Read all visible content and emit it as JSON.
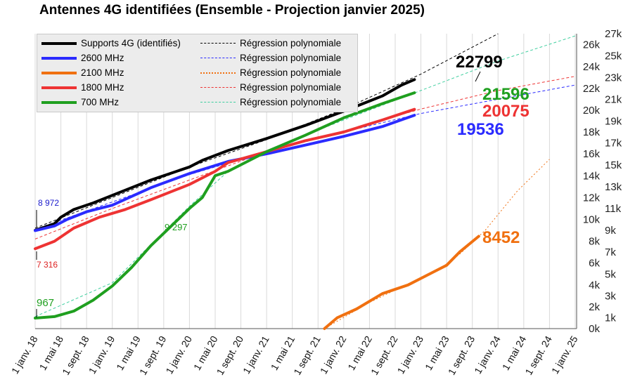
{
  "chart_data": {
    "type": "line",
    "title": "Antennes 4G identifiées (Ensemble - Projection janvier 2025)",
    "x_tick_labels": [
      "1 janv. 18",
      "1 mai 18",
      "1 sept. 18",
      "1 janv. 19",
      "1 mai 19",
      "1 sept. 19",
      "1 janv. 20",
      "1 mai 20",
      "1 sept. 20",
      "1 janv. 21",
      "1 mai 21",
      "1 sept. 21",
      "1 janv. 22",
      "1 mai 22",
      "1 sept. 22",
      "1 janv. 23",
      "1 mai 23",
      "1 sept. 23",
      "1 janv. 24",
      "1 mai 24",
      "1 sept. 24",
      "1 janv. 25"
    ],
    "y_left_ticks": [
      "0k",
      "2k",
      "4k",
      "6k",
      "8k",
      "10k",
      "12k",
      "14k",
      "16k",
      "18k",
      "20k",
      "22k",
      "24k",
      "26k"
    ],
    "y_right_ticks": [
      "1k",
      "3k",
      "5k",
      "7k",
      "9k",
      "11k",
      "13k",
      "15k",
      "17k",
      "19k",
      "21k",
      "23k",
      "25k",
      "27k"
    ],
    "ylim": [
      0,
      27000
    ],
    "grid": "vertical",
    "legend_position": "top-left",
    "series": [
      {
        "key": "supports",
        "name": "Supports 4G (identifiés)",
        "color": "#000000",
        "values": [
          [
            0,
            9000
          ],
          [
            3,
            9600
          ],
          [
            4,
            10200
          ],
          [
            6,
            10900
          ],
          [
            9,
            11500
          ],
          [
            12,
            12200
          ],
          [
            18,
            13600
          ],
          [
            24,
            14800
          ],
          [
            26,
            15400
          ],
          [
            30,
            16300
          ],
          [
            36,
            17400
          ],
          [
            42,
            18600
          ],
          [
            48,
            19900
          ],
          [
            54,
            21300
          ],
          [
            57,
            22300
          ],
          [
            59,
            22799
          ]
        ]
      },
      {
        "key": "mhz2600",
        "name": "2600 MHz",
        "color": "#2b2bff",
        "values": [
          [
            0,
            8972
          ],
          [
            3,
            9400
          ],
          [
            5,
            10000
          ],
          [
            8,
            10700
          ],
          [
            12,
            11300
          ],
          [
            18,
            12900
          ],
          [
            24,
            14200
          ],
          [
            30,
            15300
          ],
          [
            36,
            16000
          ],
          [
            42,
            16800
          ],
          [
            48,
            17600
          ],
          [
            54,
            18500
          ],
          [
            59,
            19536
          ]
        ]
      },
      {
        "key": "mhz2100",
        "name": "2100 MHz",
        "color": "#f07010",
        "values": [
          [
            45,
            0
          ],
          [
            47,
            1000
          ],
          [
            50,
            1800
          ],
          [
            54,
            3200
          ],
          [
            58,
            4000
          ],
          [
            62,
            5200
          ],
          [
            64,
            5800
          ],
          [
            66,
            7000
          ],
          [
            69,
            8452
          ]
        ]
      },
      {
        "key": "mhz1800",
        "name": "1800 MHz",
        "color": "#ee3333",
        "values": [
          [
            0,
            7316
          ],
          [
            3,
            8000
          ],
          [
            6,
            9200
          ],
          [
            10,
            10200
          ],
          [
            14,
            10900
          ],
          [
            18,
            11800
          ],
          [
            24,
            13200
          ],
          [
            28,
            14400
          ],
          [
            30,
            15200
          ],
          [
            36,
            16200
          ],
          [
            42,
            17200
          ],
          [
            48,
            18000
          ],
          [
            54,
            19100
          ],
          [
            59,
            20075
          ]
        ]
      },
      {
        "key": "mhz700",
        "name": "700 MHz",
        "color": "#1f9f1f",
        "values": [
          [
            0,
            967
          ],
          [
            3,
            1100
          ],
          [
            6,
            1600
          ],
          [
            9,
            2600
          ],
          [
            12,
            3900
          ],
          [
            15,
            5600
          ],
          [
            18,
            7600
          ],
          [
            21,
            9297
          ],
          [
            24,
            11000
          ],
          [
            26,
            12000
          ],
          [
            28,
            14000
          ],
          [
            30,
            14400
          ],
          [
            36,
            16200
          ],
          [
            42,
            17700
          ],
          [
            48,
            19300
          ],
          [
            54,
            20600
          ],
          [
            59,
            21596
          ]
        ]
      }
    ],
    "regressions": [
      {
        "key": "supports",
        "name": "Régression polynomiale",
        "color": "#000000",
        "style": "dashed",
        "values": [
          [
            0,
            9200
          ],
          [
            12,
            12000
          ],
          [
            24,
            14800
          ],
          [
            36,
            17300
          ],
          [
            48,
            20100
          ],
          [
            60,
            23300
          ],
          [
            72,
            27000
          ]
        ]
      },
      {
        "key": "mhz2600",
        "name": "Régression polynomiale",
        "color": "#2b2bff",
        "style": "dashed",
        "values": [
          [
            0,
            9100
          ],
          [
            12,
            11600
          ],
          [
            24,
            14100
          ],
          [
            36,
            16200
          ],
          [
            48,
            18000
          ],
          [
            60,
            19700
          ],
          [
            72,
            21000
          ],
          [
            84,
            22300
          ]
        ]
      },
      {
        "key": "mhz2100",
        "name": "Régression polynomiale",
        "color": "#f07010",
        "style": "dotted",
        "values": [
          [
            45,
            0
          ],
          [
            52,
            2400
          ],
          [
            58,
            4100
          ],
          [
            63,
            5500
          ],
          [
            66,
            6800
          ],
          [
            70,
            9000
          ],
          [
            75,
            12600
          ],
          [
            80,
            15500
          ]
        ]
      },
      {
        "key": "mhz1800",
        "name": "Régression polynomiale",
        "color": "#ee3333",
        "style": "dashed",
        "values": [
          [
            0,
            8200
          ],
          [
            12,
            11000
          ],
          [
            24,
            13600
          ],
          [
            36,
            16200
          ],
          [
            48,
            18100
          ],
          [
            60,
            20100
          ],
          [
            72,
            21800
          ],
          [
            84,
            23100
          ]
        ]
      },
      {
        "key": "mhz700",
        "name": "Régression polynomiale",
        "color": "#3fcf9f",
        "style": "dashed",
        "values": [
          [
            0,
            1100
          ],
          [
            12,
            4200
          ],
          [
            24,
            11200
          ],
          [
            30,
            14400
          ],
          [
            36,
            16300
          ],
          [
            48,
            19100
          ],
          [
            60,
            21800
          ],
          [
            72,
            24500
          ],
          [
            84,
            26800
          ]
        ]
      }
    ],
    "annotations": [
      {
        "key": "supports",
        "text": "22799",
        "color": "#000000"
      },
      {
        "key": "mhz700",
        "text": "21596",
        "color": "#1f9f1f"
      },
      {
        "key": "mhz1800",
        "text": "20075",
        "color": "#ee3333"
      },
      {
        "key": "mhz2600",
        "text": "19536",
        "color": "#2b2bff"
      },
      {
        "key": "mhz2100",
        "text": "8452",
        "color": "#f07010"
      },
      {
        "key": "start2600",
        "text": "8 972",
        "color": "#1a1acc"
      },
      {
        "key": "start1800",
        "text": "7 316",
        "color": "#dd2222"
      },
      {
        "key": "mid700",
        "text": "9 297",
        "color": "#1f9f1f"
      },
      {
        "key": "start700",
        "text": "967",
        "color": "#1f9f1f"
      }
    ]
  }
}
